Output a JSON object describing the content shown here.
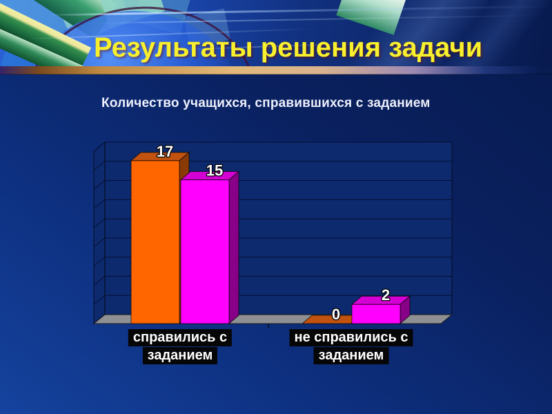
{
  "slide": {
    "title": "Результаты решения задачи"
  },
  "chart_data": {
    "type": "bar",
    "style": "3d-clustered",
    "title": "Количество учащихся, справившихся с заданием",
    "categories": [
      "справились с заданием",
      "не справились с заданием"
    ],
    "category_lines": [
      [
        "справились с",
        "заданием"
      ],
      [
        "не справились с",
        "заданием"
      ]
    ],
    "series": [
      {
        "color": "#ff6600",
        "values": [
          17,
          0
        ]
      },
      {
        "color": "#ff00ff",
        "values": [
          15,
          2
        ]
      }
    ],
    "value_labels": [
      [
        17,
        0
      ],
      [
        15,
        2
      ]
    ],
    "ylim": [
      0,
      18
    ],
    "grid_step": 2,
    "grid": true,
    "legend": false,
    "axis_tick_labels_shown": false
  },
  "colors": {
    "title_text": "#f8ef2d",
    "subtitle_text": "#edf0fd",
    "divider_tan": "#e2b878",
    "background_top_right": "#071a4e",
    "background_bottom_left": "#15439e",
    "wall": "#0d2a6e",
    "grid_line": "#050f33",
    "floor": "#8f9093",
    "series1": {
      "front": "#ff6600",
      "top": "#c25210",
      "side": "#8a3a05"
    },
    "series2": {
      "front": "#ff00ff",
      "top": "#d400d4",
      "side": "#880088"
    },
    "value_label_fill": "#ffffff",
    "value_label_outline": "#000000",
    "category_label_bg": "#060606",
    "category_label_text": "#ffffff"
  }
}
